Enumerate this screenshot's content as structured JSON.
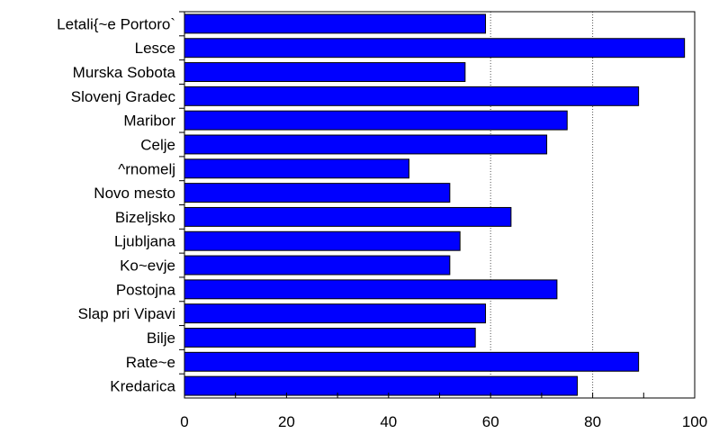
{
  "chart_data": {
    "type": "bar",
    "orientation": "horizontal",
    "title": "",
    "xlabel": "",
    "ylabel": "",
    "categories": [
      "Letali{~e Portoro`",
      "Lesce",
      "Murska Sobota",
      "Slovenj Gradec",
      "Maribor",
      "Celje",
      "^rnomelj",
      "Novo mesto",
      "Bizeljsko",
      "Ljubljana",
      "Ko~evje",
      "Postojna",
      "Slap pri Vipavi",
      "Bilje",
      "Rate~e",
      "Kredarica"
    ],
    "values": [
      59,
      98,
      55,
      89,
      75,
      71,
      44,
      52,
      64,
      54,
      52,
      73,
      59,
      57,
      89,
      77
    ],
    "xlim": [
      0,
      100
    ],
    "xticks": [
      "0",
      "20",
      "40",
      "60",
      "80",
      "100"
    ],
    "grid": {
      "x": true,
      "x_at": [
        60,
        80
      ],
      "style": "dotted"
    },
    "legend": "none",
    "colors": {
      "bar": "#0000ff",
      "bar_edge": "#000000",
      "axis": "#000000",
      "grid": "#555555"
    }
  }
}
